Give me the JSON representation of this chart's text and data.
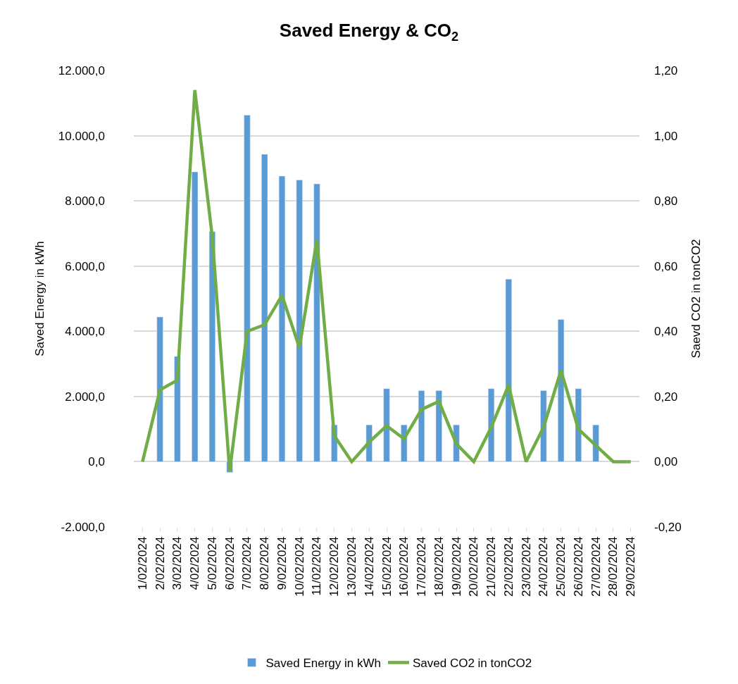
{
  "chart_data": {
    "type": "bar",
    "title": "Saved Energy & CO$_{2}$",
    "ylabel": "Saved Energy in kWh",
    "y2label": "Saevd CO2 in tonCO2",
    "categories": [
      "1/02/2024",
      "2/02/2024",
      "3/02/2024",
      "4/02/2024",
      "5/02/2024",
      "6/02/2024",
      "7/02/2024",
      "8/02/2024",
      "9/02/2024",
      "10/02/2024",
      "11/02/2024",
      "12/02/2024",
      "13/02/2024",
      "14/02/2024",
      "15/02/2024",
      "16/02/2024",
      "17/02/2024",
      "18/02/2024",
      "19/02/2024",
      "20/02/2024",
      "21/02/2024",
      "22/02/2024",
      "23/02/2024",
      "24/02/2024",
      "25/02/2024",
      "26/02/2024",
      "27/02/2024",
      "28/02/2024",
      "29/02/2024"
    ],
    "series": [
      {
        "name": "Saved Energy in kWh",
        "color": "#5b9bd5",
        "values": [
          null,
          4440,
          3230,
          8890,
          7060,
          -330,
          10630,
          9430,
          8760,
          8640,
          8520,
          1130,
          null,
          1130,
          2240,
          1130,
          2180,
          2180,
          1130,
          null,
          2240,
          5600,
          null,
          2180,
          4360,
          2240,
          1130,
          null,
          null
        ]
      },
      {
        "name": "Saved CO2 in tonCO2",
        "type": "line",
        "axis": "y2",
        "color": "#70ad47",
        "marker": "none",
        "line_style": "solid",
        "values": [
          0,
          0.22,
          0.25,
          1.14,
          0.69,
          -0.03,
          0.4,
          0.42,
          0.51,
          0.35,
          0.68,
          0.08,
          0,
          0.06,
          0.11,
          0.07,
          0.16,
          0.185,
          0.055,
          0,
          0.105,
          0.235,
          0,
          0.105,
          0.28,
          0.1,
          0.05,
          0,
          0
        ]
      }
    ],
    "ylim": [
      -2000,
      12000
    ],
    "yticks": [
      {
        "value": -2000,
        "label": "-2.000,0"
      },
      {
        "value": 0,
        "label": "0,0"
      },
      {
        "value": 2000,
        "label": "2.000,0"
      },
      {
        "value": 4000,
        "label": "4.000,0"
      },
      {
        "value": 6000,
        "label": "6.000,0"
      },
      {
        "value": 8000,
        "label": "8.000,0"
      },
      {
        "value": 10000,
        "label": "10.000,0"
      },
      {
        "value": 12000,
        "label": "12.000,0"
      }
    ],
    "y2lim": [
      -0.2,
      1.2
    ],
    "y2ticks": [
      {
        "value": -0.2,
        "label": "-0,20"
      },
      {
        "value": 0,
        "label": "0,00"
      },
      {
        "value": 0.2,
        "label": "0,20"
      },
      {
        "value": 0.4,
        "label": "0,40"
      },
      {
        "value": 0.6,
        "label": "0,60"
      },
      {
        "value": 0.8,
        "label": "0,80"
      },
      {
        "value": 1.0,
        "label": "1,00"
      },
      {
        "value": 1.2,
        "label": "1,20"
      }
    ],
    "grid": "y",
    "legend": "bottom"
  }
}
